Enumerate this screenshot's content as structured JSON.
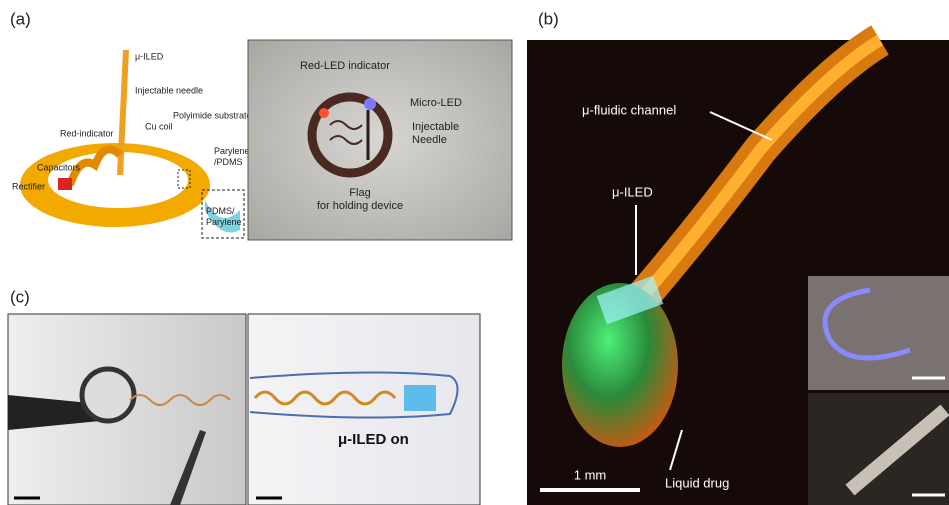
{
  "panels": [
    {
      "label": "(a)",
      "annotations": [
        "μ-ILED",
        "Injectable needle",
        "Red-indicator",
        "Capacitors",
        "Rectifier",
        "Cu coil",
        "Polyimide substrate",
        [
          "Parylene",
          "/PDMS"
        ],
        [
          "PDMS/",
          "Parylene"
        ],
        "Red-LED indicator",
        "Micro-LED",
        [
          "Injectable",
          "Needle"
        ],
        [
          "Flag",
          "for holding device"
        ]
      ]
    },
    {
      "label": "(b)",
      "annotations": [
        "μ-fluidic channel",
        "μ-ILED",
        "1 mm",
        "Liquid drug"
      ]
    },
    {
      "label": "(c)",
      "annotations": [
        "μ-ILED on"
      ]
    }
  ]
}
